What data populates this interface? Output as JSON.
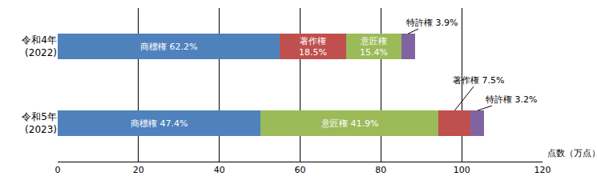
{
  "chart_data": {
    "type": "bar",
    "orientation": "horizontal",
    "stacked": true,
    "data_labels": true,
    "grid": true,
    "x_label": "点数（万点）",
    "categories": [
      "令和4年\n(2022)",
      "令和5年\n(2023)"
    ],
    "segments": [
      [
        {
          "value": 55.0,
          "value_label": "商標権 62.2%",
          "color": "#4f81bd"
        },
        {
          "value": 16.4,
          "value_label": "著作権\n18.5%",
          "color": "#c0504d"
        },
        {
          "value": 13.6,
          "value_label": "意匠権\n15.4%",
          "color": "#9bbb59"
        },
        {
          "value": 3.4,
          "value_label": "特許権 3.9%",
          "color": "#8064a2"
        }
      ],
      [
        {
          "value": 50.1,
          "value_label": "商標権 47.4%",
          "color": "#4f81bd"
        },
        {
          "value": 44.2,
          "value_label": "意匠権 41.9%",
          "color": "#9bbb59"
        },
        {
          "value": 7.9,
          "value_label": "著作権 7.5%",
          "color": "#c0504d"
        },
        {
          "value": 3.4,
          "value_label": "特許権 3.2%",
          "color": "#8064a2"
        }
      ]
    ],
    "xlim": [
      0,
      120
    ],
    "xticks": [
      0,
      20,
      40,
      60,
      80,
      100,
      120
    ]
  }
}
